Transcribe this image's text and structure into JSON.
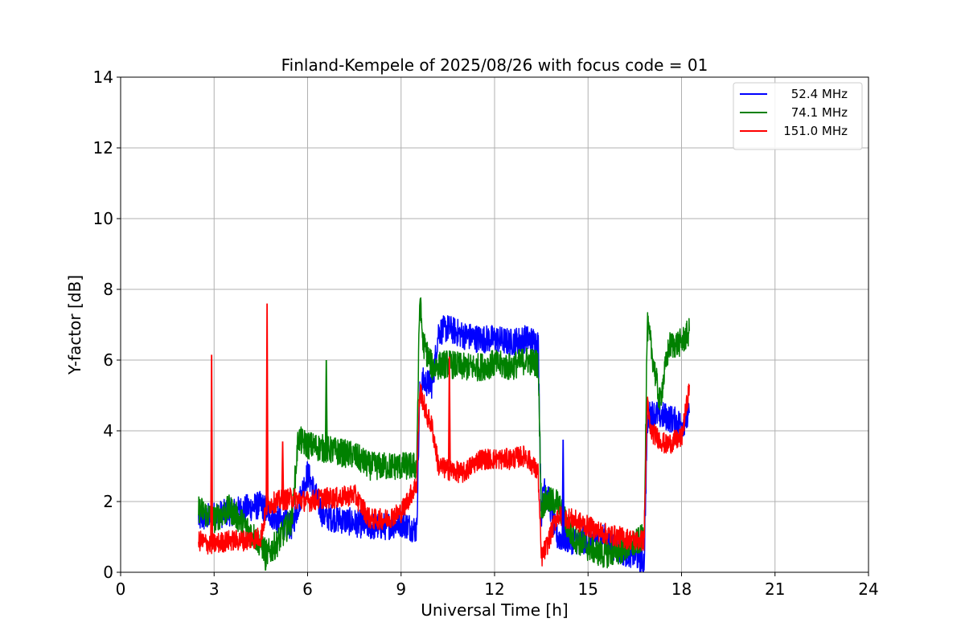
{
  "chart_data": {
    "type": "line",
    "title": "Finland-Kempele of 2025/08/26 with focus code = 01",
    "xlabel": "Universal Time [h]",
    "ylabel": "Y-factor [dB]",
    "xlim": [
      0,
      24
    ],
    "ylim": [
      0,
      14
    ],
    "x_ticks": [
      "0",
      "3",
      "6",
      "9",
      "12",
      "15",
      "18",
      "21",
      "24"
    ],
    "y_ticks": [
      "0",
      "2",
      "4",
      "6",
      "8",
      "10",
      "12",
      "14"
    ],
    "grid": true,
    "legend_position": "top-right",
    "series": [
      {
        "name": "52.4 MHz",
        "color": "#0000ff",
        "band": 0.4,
        "x": [
          2.5,
          3.0,
          3.5,
          4.0,
          4.5,
          5.0,
          5.5,
          6.0,
          6.5,
          7.0,
          7.5,
          8.0,
          8.5,
          9.0,
          9.5,
          9.6,
          9.7,
          10.0,
          10.2,
          10.5,
          11.0,
          11.5,
          12.0,
          12.5,
          13.0,
          13.4,
          13.5,
          13.6,
          14.0,
          14.5,
          15.0,
          15.5,
          16.0,
          16.5,
          16.8,
          16.9,
          17.0,
          17.5,
          18.0,
          18.25
        ],
        "y": [
          1.5,
          1.6,
          1.7,
          1.8,
          1.9,
          1.5,
          1.3,
          2.8,
          1.6,
          1.5,
          1.4,
          1.3,
          1.3,
          1.4,
          1.2,
          5.0,
          5.4,
          5.3,
          6.8,
          6.9,
          6.7,
          6.6,
          6.6,
          6.5,
          6.6,
          6.5,
          1.6,
          2.6,
          1.0,
          0.9,
          0.9,
          1.0,
          0.6,
          0.5,
          0.3,
          4.2,
          4.5,
          4.4,
          4.2,
          4.4
        ]
      },
      {
        "name": "74.1 MHz",
        "color": "#008000",
        "band": 0.4,
        "x": [
          2.5,
          3.0,
          3.5,
          4.0,
          4.5,
          4.7,
          5.0,
          5.5,
          5.7,
          5.8,
          6.0,
          6.5,
          7.0,
          7.5,
          8.0,
          8.5,
          9.0,
          9.5,
          9.6,
          9.7,
          10.0,
          10.5,
          11.0,
          11.5,
          12.0,
          12.5,
          13.0,
          13.4,
          13.5,
          13.6,
          14.0,
          14.5,
          15.0,
          15.5,
          16.0,
          16.5,
          16.8,
          16.9,
          17.0,
          17.3,
          17.6,
          18.0,
          18.25
        ],
        "y": [
          1.8,
          1.5,
          1.8,
          1.3,
          0.8,
          0.5,
          0.8,
          1.5,
          3.8,
          3.7,
          3.6,
          3.5,
          3.4,
          3.3,
          3.0,
          3.0,
          3.0,
          3.0,
          7.8,
          6.5,
          5.8,
          5.9,
          5.8,
          5.8,
          5.9,
          5.8,
          6.0,
          5.9,
          1.8,
          2.0,
          2.0,
          1.0,
          0.7,
          0.5,
          0.6,
          0.8,
          1.0,
          7.0,
          6.5,
          4.8,
          6.4,
          6.5,
          6.8
        ]
      },
      {
        "name": "151.0 MHz",
        "color": "#ff0000",
        "band": 0.3,
        "x": [
          2.5,
          2.8,
          3.0,
          3.5,
          4.0,
          4.5,
          4.7,
          5.0,
          5.5,
          6.0,
          6.5,
          7.0,
          7.5,
          8.0,
          8.5,
          9.0,
          9.5,
          9.6,
          9.8,
          10.0,
          10.2,
          10.5,
          11.0,
          11.5,
          12.0,
          12.5,
          13.0,
          13.4,
          13.5,
          13.7,
          14.0,
          14.5,
          15.0,
          15.5,
          16.0,
          16.5,
          16.8,
          16.9,
          17.0,
          17.5,
          18.0,
          18.25
        ],
        "y": [
          0.9,
          0.8,
          0.8,
          0.9,
          0.9,
          1.0,
          1.9,
          2.0,
          2.1,
          2.0,
          2.1,
          2.1,
          2.2,
          1.5,
          1.5,
          1.7,
          2.5,
          5.2,
          4.5,
          4.1,
          3.0,
          2.9,
          2.8,
          3.2,
          3.2,
          3.2,
          3.3,
          2.8,
          0.4,
          0.8,
          1.6,
          1.5,
          1.3,
          1.1,
          1.0,
          0.9,
          0.9,
          4.8,
          4.0,
          3.6,
          3.8,
          5.2
        ]
      }
    ],
    "spikes": [
      {
        "series": "151.0 MHz",
        "x": 2.92,
        "y": 6.15
      },
      {
        "series": "151.0 MHz",
        "x": 4.7,
        "y": 7.6
      },
      {
        "series": "151.0 MHz",
        "x": 5.2,
        "y": 3.7
      },
      {
        "series": "151.0 MHz",
        "x": 10.55,
        "y": 6.1
      },
      {
        "series": "74.1 MHz",
        "x": 6.6,
        "y": 6.0
      },
      {
        "series": "74.1 MHz",
        "x": 4.65,
        "y": 0.05
      },
      {
        "series": "52.4 MHz",
        "x": 14.2,
        "y": 3.75
      }
    ]
  }
}
